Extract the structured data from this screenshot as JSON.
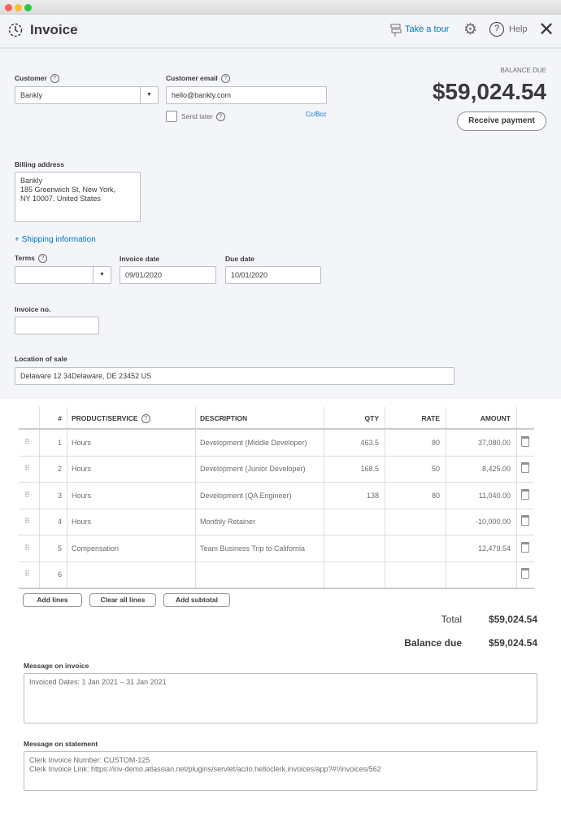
{
  "header": {
    "title": "Invoice",
    "take_tour": "Take a tour",
    "help": "Help"
  },
  "customer": {
    "label": "Customer",
    "value": "Bankly"
  },
  "email": {
    "label": "Customer email",
    "value": "hello@bankly.com",
    "send_later": "Send later",
    "cc_bcc": "Cc/Bcc"
  },
  "balance": {
    "label": "BALANCE DUE",
    "amount": "$59,024.54",
    "receive_payment": "Receive payment"
  },
  "billing": {
    "label": "Billing address",
    "lines": [
      "Bankly",
      "185 Greenwich St, New York,",
      "NY 10007, United States"
    ]
  },
  "shipping_link": "+ Shipping information",
  "terms": {
    "label": "Terms",
    "value": ""
  },
  "invoice_date": {
    "label": "Invoice date",
    "value": "09/01/2020"
  },
  "due_date": {
    "label": "Due date",
    "value": "10/01/2020"
  },
  "invoice_no": {
    "label": "Invoice no.",
    "value": ""
  },
  "location": {
    "label": "Location of sale",
    "value": "Delaware 12 34Delaware, DE  23452 US"
  },
  "table": {
    "headers": [
      "#",
      "PRODUCT/SERVICE",
      "DESCRIPTION",
      "QTY",
      "RATE",
      "AMOUNT"
    ],
    "rows": [
      {
        "num": "1",
        "product": "Hours",
        "description": "Development (Middle Developer)",
        "qty": "463.5",
        "rate": "80",
        "amount": "37,080.00"
      },
      {
        "num": "2",
        "product": "Hours",
        "description": "Development (Junior Developer)",
        "qty": "168.5",
        "rate": "50",
        "amount": "8,425.00"
      },
      {
        "num": "3",
        "product": "Hours",
        "description": "Development (QA Engineer)",
        "qty": "138",
        "rate": "80",
        "amount": "11,040.00"
      },
      {
        "num": "4",
        "product": "Hours",
        "description": "Monthly Retainer",
        "qty": "",
        "rate": "",
        "amount": "-10,000.00"
      },
      {
        "num": "5",
        "product": "Compensation",
        "description": "Team Business Trip to California",
        "qty": "",
        "rate": "",
        "amount": "12,479.54"
      },
      {
        "num": "6",
        "product": "",
        "description": "",
        "qty": "",
        "rate": "",
        "amount": ""
      }
    ]
  },
  "buttons": {
    "add_lines": "Add lines",
    "clear_all": "Clear all lines",
    "add_subtotal": "Add subtotal"
  },
  "totals": {
    "total_label": "Total",
    "total": "$59,024.54",
    "balance_label": "Balance due",
    "balance": "$59,024.54"
  },
  "message_invoice": {
    "label": "Message on invoice",
    "value": "Invoiced Dates: 1 Jan 2021 – 31 Jan 2021"
  },
  "message_statement": {
    "label": "Message on statement",
    "lines": [
      "Clerk Invoice Number: CUSTOM-125",
      "Clerk Invoice Link: https://inv-demo.atlassian.net/plugins/servlet/ac/io.helloclerk.invoices/app?#!/invoices/562"
    ]
  },
  "colors": {
    "accent": "#0077c5",
    "bg": "#f4f5f8"
  }
}
